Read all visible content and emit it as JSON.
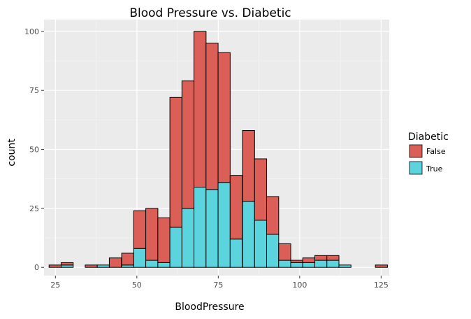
{
  "chart_data": {
    "type": "bar",
    "title": "Blood Pressure vs. Diabetic",
    "xlabel": "BloodPressure",
    "ylabel": "count",
    "xlim": [
      21.5,
      127.5
    ],
    "ylim": [
      -3.5,
      105
    ],
    "x_ticks": [
      25,
      50,
      75,
      100,
      125
    ],
    "y_ticks": [
      0,
      25,
      50,
      75,
      100
    ],
    "grid": true,
    "stacked": true,
    "bin_width": 3.71,
    "bin_centers": [
      24.9,
      28.6,
      32.3,
      36.0,
      39.7,
      43.4,
      47.2,
      50.9,
      54.6,
      58.3,
      62.0,
      65.7,
      69.4,
      73.1,
      76.8,
      80.5,
      84.3,
      88.0,
      91.7,
      95.4,
      99.1,
      102.8,
      106.5,
      110.2,
      113.9,
      117.6,
      121.4,
      125.1
    ],
    "legend": {
      "title": "Diabetic",
      "position": "right"
    },
    "series": [
      {
        "name": "True",
        "color": "#5BD4DD",
        "values": [
          0,
          1,
          0,
          0,
          1,
          0,
          1,
          8,
          3,
          2,
          17,
          25,
          34,
          33,
          36,
          12,
          28,
          20,
          14,
          3,
          2,
          2,
          3,
          3,
          1,
          0,
          0,
          0
        ]
      },
      {
        "name": "False",
        "color": "#DB5F57",
        "values": [
          1,
          1,
          0,
          1,
          0,
          4,
          5,
          16,
          22,
          19,
          55,
          54,
          66,
          62,
          55,
          27,
          30,
          26,
          16,
          7,
          1,
          2,
          2,
          2,
          0,
          0,
          0,
          1
        ]
      }
    ]
  }
}
